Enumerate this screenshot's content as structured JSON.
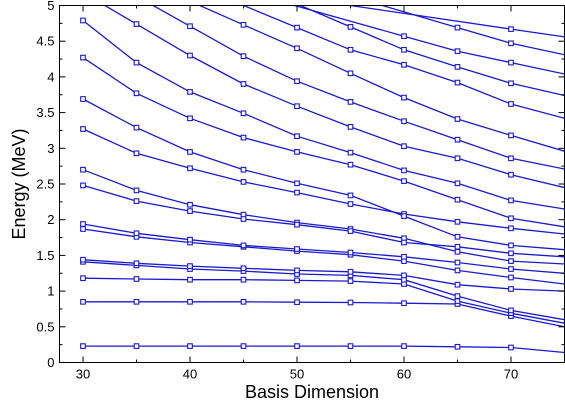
{
  "chart_data": {
    "type": "line",
    "title": "",
    "xlabel": "Basis Dimension",
    "ylabel": "Energy (MeV)",
    "xlim": [
      27.8,
      75
    ],
    "ylim": [
      0,
      5
    ],
    "x_ticks": [
      30,
      40,
      50,
      60,
      70
    ],
    "x_tick_labels": [
      "30",
      "40",
      "50",
      "60",
      "70"
    ],
    "y_ticks": [
      0,
      0.5,
      1,
      1.5,
      2,
      2.5,
      3,
      3.5,
      4,
      4.5,
      5
    ],
    "y_tick_labels": [
      "0",
      "0.5",
      "1",
      "1.5",
      "2",
      "2.5",
      "3",
      "3.5",
      "4",
      "4.5",
      "5"
    ],
    "grid": false,
    "legend": "none",
    "line_color": "#1a1acc",
    "marker": "open-square",
    "x": [
      30,
      35,
      40,
      45,
      50,
      55,
      60,
      65,
      70,
      75
    ],
    "series": [
      {
        "values": [
          0.23,
          0.23,
          0.23,
          0.23,
          0.23,
          0.23,
          0.23,
          0.22,
          0.21,
          0.14
        ]
      },
      {
        "values": [
          0.85,
          0.85,
          0.85,
          0.85,
          0.845,
          0.84,
          0.83,
          0.82,
          0.65,
          0.5
        ]
      },
      {
        "values": [
          1.18,
          1.17,
          1.16,
          1.16,
          1.15,
          1.14,
          1.1,
          0.86,
          0.69,
          0.55
        ]
      },
      {
        "values": [
          1.41,
          1.36,
          1.31,
          1.28,
          1.24,
          1.22,
          1.16,
          0.93,
          0.73,
          0.6
        ]
      },
      {
        "values": [
          1.44,
          1.39,
          1.35,
          1.32,
          1.29,
          1.27,
          1.22,
          1.09,
          1.03,
          1.0
        ]
      },
      {
        "values": [
          1.87,
          1.76,
          1.68,
          1.62,
          1.56,
          1.51,
          1.42,
          1.29,
          1.19,
          1.1
        ]
      },
      {
        "values": [
          1.94,
          1.81,
          1.72,
          1.64,
          1.59,
          1.54,
          1.48,
          1.4,
          1.31,
          1.25
        ]
      },
      {
        "values": [
          2.7,
          2.41,
          2.21,
          2.07,
          1.96,
          1.87,
          1.74,
          1.55,
          1.42,
          1.38
        ]
      },
      {
        "values": [
          2.48,
          2.26,
          2.12,
          2.01,
          1.93,
          1.84,
          1.68,
          1.62,
          1.53,
          1.48
        ]
      },
      {
        "values": [
          3.27,
          2.93,
          2.72,
          2.53,
          2.38,
          2.22,
          2.08,
          1.97,
          1.88,
          1.8
        ]
      },
      {
        "values": [
          3.69,
          3.29,
          2.95,
          2.7,
          2.51,
          2.34,
          2.05,
          1.76,
          1.64,
          1.58
        ]
      },
      {
        "values": [
          4.27,
          3.77,
          3.42,
          3.15,
          2.95,
          2.77,
          2.54,
          2.28,
          2.02,
          1.9
        ]
      },
      {
        "values": [
          4.79,
          4.2,
          3.79,
          3.49,
          3.17,
          2.94,
          2.69,
          2.51,
          2.27,
          2.15
        ]
      },
      {
        "values": [
          null,
          4.74,
          4.3,
          3.9,
          3.59,
          3.3,
          3.03,
          2.86,
          2.63,
          2.45
        ]
      },
      {
        "values": [
          null,
          null,
          4.71,
          4.29,
          3.94,
          3.65,
          3.38,
          3.12,
          2.86,
          2.71
        ]
      },
      {
        "values": [
          null,
          null,
          null,
          4.73,
          4.4,
          4.05,
          3.71,
          3.41,
          3.18,
          2.96
        ]
      },
      {
        "values": [
          null,
          null,
          null,
          null,
          4.69,
          4.38,
          4.17,
          3.92,
          3.62,
          3.42
        ]
      },
      {
        "values": [
          null,
          null,
          null,
          null,
          null,
          4.7,
          4.38,
          4.14,
          3.91,
          3.74
        ]
      },
      {
        "values": [
          null,
          null,
          null,
          null,
          null,
          null,
          4.57,
          4.36,
          4.2,
          4.04
        ]
      },
      {
        "values": [
          null,
          null,
          null,
          null,
          null,
          null,
          null,
          4.69,
          4.47,
          4.31
        ]
      },
      {
        "values": [
          null,
          null,
          null,
          null,
          null,
          null,
          null,
          null,
          4.67,
          4.56
        ]
      }
    ]
  }
}
